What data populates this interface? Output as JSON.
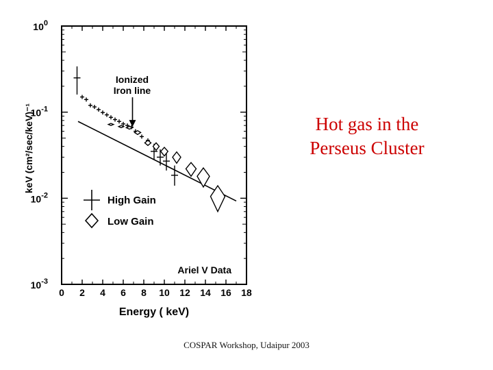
{
  "slide": {
    "title_lines": [
      "Hot gas in the",
      "Perseus Cluster"
    ],
    "footer": "COSPAR Workshop, Udaipur 2003",
    "title_color": "#cc0000"
  },
  "chart_data": {
    "type": "scatter",
    "title": "",
    "xlabel": "Energy ( keV)",
    "ylabel": "keV (cm²/sec/keV)⁻¹",
    "xlim": [
      0,
      18
    ],
    "ylim": [
      0.001,
      1
    ],
    "y_scale": "log",
    "x_ticks": [
      0,
      2,
      4,
      6,
      8,
      10,
      12,
      14,
      16,
      18
    ],
    "y_ticks": [
      {
        "value": 1,
        "base": "10",
        "exp": "0"
      },
      {
        "value": 0.1,
        "base": "10",
        "exp": "-1"
      },
      {
        "value": 0.01,
        "base": "10",
        "exp": "-2"
      },
      {
        "value": 0.001,
        "base": "10",
        "exp": "-3"
      }
    ],
    "legend": {
      "placement": "lower-left",
      "entries": [
        {
          "symbol": "cross",
          "label": "High Gain"
        },
        {
          "symbol": "diamond",
          "label": "Low Gain"
        }
      ]
    },
    "annotations": [
      {
        "text_lines": [
          "Ionized",
          "Iron line"
        ],
        "x": 6.9,
        "y": 0.065
      },
      {
        "text": "Ariel V Data",
        "placement": "lower-right"
      }
    ],
    "model_line": {
      "x": [
        1.6,
        17.0
      ],
      "y": [
        0.078,
        0.0093
      ]
    },
    "series": [
      {
        "name": "High Gain",
        "marker": "cross",
        "points": [
          {
            "x": 1.5,
            "y": 0.25,
            "ylo": 0.16,
            "yhi": 0.34
          },
          {
            "x": 2.0,
            "y": 0.15
          },
          {
            "x": 2.4,
            "y": 0.14
          },
          {
            "x": 2.8,
            "y": 0.12
          },
          {
            "x": 3.2,
            "y": 0.115
          },
          {
            "x": 3.6,
            "y": 0.107
          },
          {
            "x": 4.0,
            "y": 0.099
          },
          {
            "x": 4.4,
            "y": 0.093
          },
          {
            "x": 4.8,
            "y": 0.087
          },
          {
            "x": 5.2,
            "y": 0.082
          },
          {
            "x": 5.6,
            "y": 0.078
          },
          {
            "x": 6.0,
            "y": 0.073
          },
          {
            "x": 6.4,
            "y": 0.07
          },
          {
            "x": 6.8,
            "y": 0.067
          },
          {
            "x": 7.2,
            "y": 0.06
          },
          {
            "x": 7.8,
            "y": 0.052
          },
          {
            "x": 8.4,
            "y": 0.047
          },
          {
            "x": 9.0,
            "y": 0.035,
            "ylo": 0.028,
            "yhi": 0.043
          },
          {
            "x": 9.6,
            "y": 0.03,
            "ylo": 0.024,
            "yhi": 0.037
          },
          {
            "x": 10.2,
            "y": 0.027,
            "ylo": 0.021,
            "yhi": 0.034
          },
          {
            "x": 11.0,
            "y": 0.0185,
            "ylo": 0.014,
            "yhi": 0.024
          }
        ]
      },
      {
        "name": "Low Gain",
        "marker": "diamond",
        "points": [
          {
            "x": 4.8,
            "y": 0.072,
            "w": 0.5,
            "h": 0.004
          },
          {
            "x": 5.8,
            "y": 0.068,
            "w": 0.5,
            "h": 0.004
          },
          {
            "x": 6.6,
            "y": 0.066,
            "w": 0.6,
            "h": 0.005
          },
          {
            "x": 7.4,
            "y": 0.058,
            "w": 0.6,
            "h": 0.006
          },
          {
            "x": 8.4,
            "y": 0.044,
            "w": 0.6,
            "h": 0.006
          },
          {
            "x": 9.2,
            "y": 0.04,
            "w": 0.6,
            "h": 0.008
          },
          {
            "x": 10.0,
            "y": 0.035,
            "w": 0.7,
            "h": 0.008
          },
          {
            "x": 11.2,
            "y": 0.03,
            "w": 0.8,
            "h": 0.009
          },
          {
            "x": 12.6,
            "y": 0.022,
            "w": 1.0,
            "h": 0.008
          },
          {
            "x": 13.8,
            "y": 0.018,
            "w": 1.2,
            "h": 0.009
          },
          {
            "x": 15.2,
            "y": 0.0105,
            "w": 1.4,
            "h": 0.007
          }
        ]
      }
    ]
  }
}
